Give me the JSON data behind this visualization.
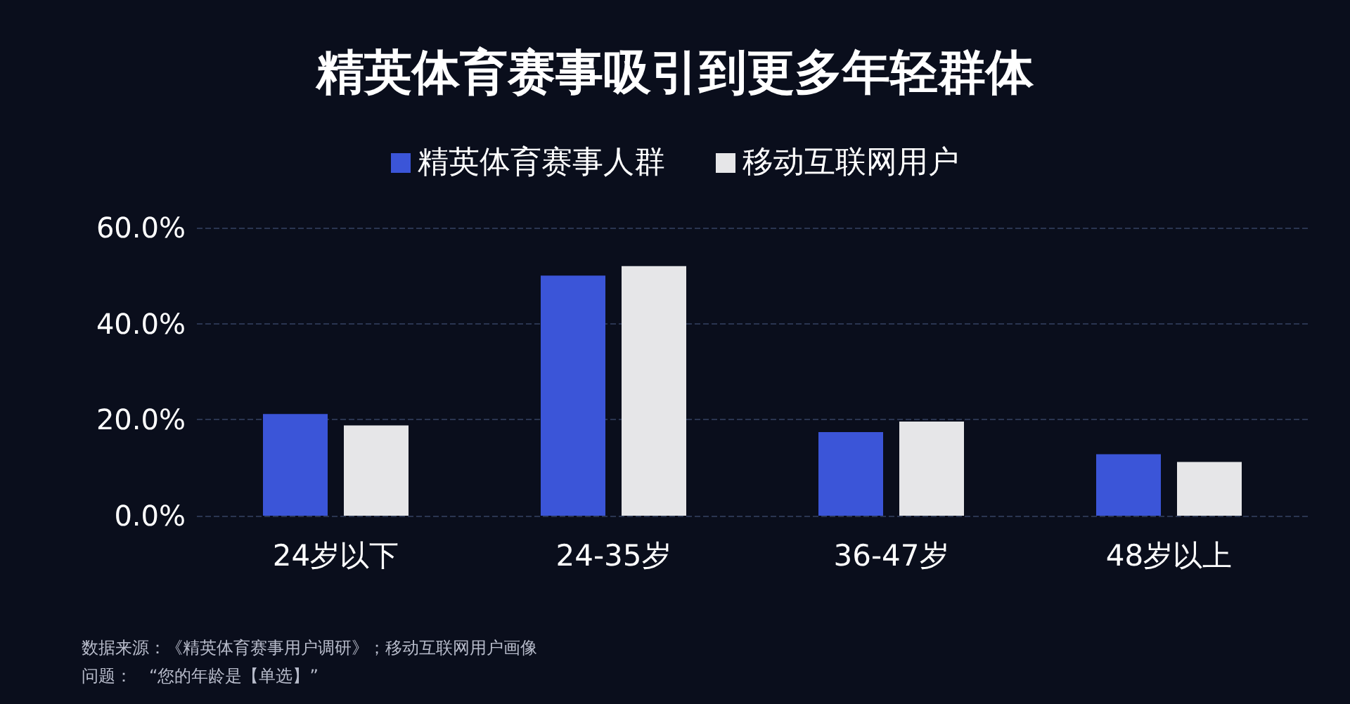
{
  "chart_data": {
    "type": "bar",
    "title": "精英体育赛事吸引到更多年轻群体",
    "categories": [
      "24岁以下",
      "24-35岁",
      "36-47岁",
      "48岁以上"
    ],
    "series": [
      {
        "name": "精英体育赛事人群",
        "color": "#3b55d8",
        "values": [
          21.2,
          50.0,
          17.4,
          12.8
        ]
      },
      {
        "name": "移动互联网用户",
        "color": "#e6e6e8",
        "values": [
          18.8,
          52.0,
          19.6,
          11.2
        ]
      }
    ],
    "ylim": [
      0,
      60
    ],
    "yticks": [
      {
        "value": 0,
        "label": "0.0%"
      },
      {
        "value": 20,
        "label": "20.0%"
      },
      {
        "value": 40,
        "label": "40.0%"
      },
      {
        "value": 60,
        "label": "60.0%"
      }
    ],
    "grid": "y",
    "legend": "top",
    "annotations": [
      "数据来源：《精英体育赛事用户调研》；移动互联网用户画像",
      "问题：　“您的年龄是【单选】”"
    ]
  }
}
